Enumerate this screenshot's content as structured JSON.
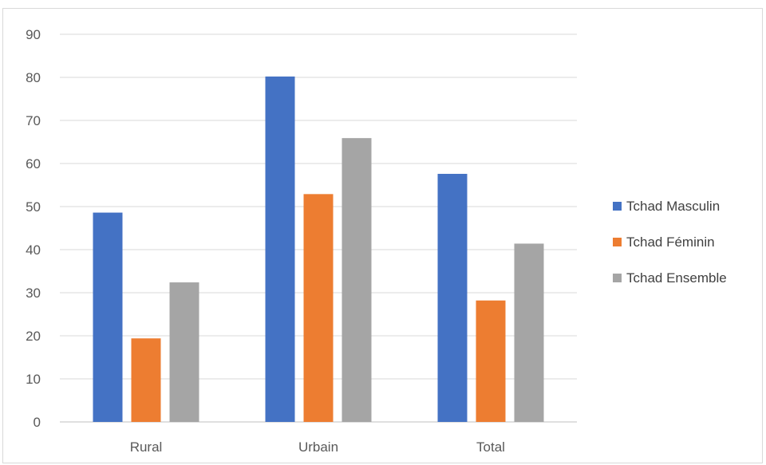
{
  "chart_data": {
    "type": "bar",
    "categories": [
      "Rural",
      "Urbain",
      "Total"
    ],
    "series": [
      {
        "name": "Tchad Masculin",
        "color": "#4472c4",
        "values": [
          48.6,
          80.2,
          57.6
        ]
      },
      {
        "name": "Tchad Féminin",
        "color": "#ed7d31",
        "values": [
          19.4,
          52.9,
          28.2
        ]
      },
      {
        "name": "Tchad Ensemble",
        "color": "#a5a5a5",
        "values": [
          32.4,
          65.9,
          41.4
        ]
      }
    ],
    "yticks": [
      "0",
      "10",
      "20",
      "30",
      "40",
      "50",
      "60",
      "70",
      "80",
      "90"
    ],
    "ylim": [
      0,
      90
    ],
    "grid": true,
    "legend_position": "right",
    "title": "",
    "xlabel": "",
    "ylabel": ""
  }
}
